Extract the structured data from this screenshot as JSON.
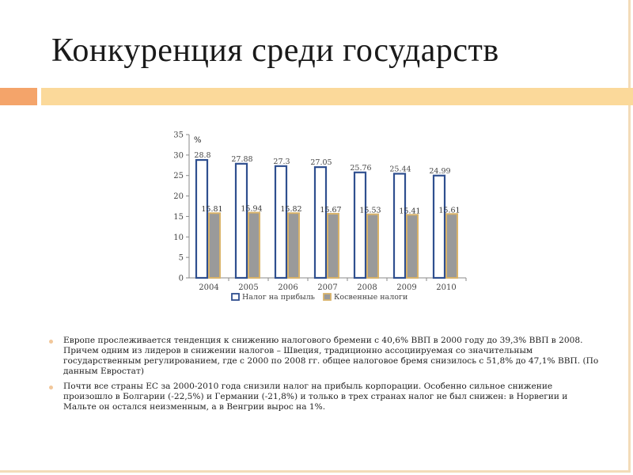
{
  "slide": {
    "title": "Конкуренция среди государств",
    "paragraphs": [
      "Европе прослеживается тенденция к снижению налогового бремени с 40,6% ВВП в 2000 году до 39,3% ВВП в 2008. Причем одним из лидеров в снижении налогов – Швеция, традиционно ассоциируемая со значительным государственным регулированием, где с 2000 по 2008 гг. общее налоговое бремя снизилось с 51,8% до 47,1% ВВП. (По данным Евростат)",
      "Почти все страны ЕС за 2000-2010 года снизили налог на прибыль корпорации. Особенно сильное снижение произошло в Болгарии (-22,5%) и Германии (-21,8%) и только в трех странах налог не был снижен: в Норвегии и Мальте он остался неизменным, а в Венгрии вырос на 1%."
    ],
    "colors": {
      "band_left": "#f4a46a",
      "band_right": "#fbd99a",
      "bullet": "#f2c79a"
    }
  },
  "chart_data": {
    "type": "bar",
    "title": "",
    "xlabel": "",
    "ylabel": "%",
    "ylim": [
      0,
      35
    ],
    "yticks": [
      0,
      5,
      10,
      15,
      20,
      25,
      30,
      35
    ],
    "categories": [
      "2004",
      "2005",
      "2006",
      "2007",
      "2008",
      "2009",
      "2010"
    ],
    "series": [
      {
        "name": "Налог на прибыль",
        "values": [
          28.8,
          27.88,
          27.3,
          27.05,
          25.76,
          25.44,
          24.99
        ],
        "labels": [
          "28.8",
          "27.88",
          "27.3",
          "27.05",
          "25.76",
          "25.44",
          "24.99"
        ],
        "fill": "#ffffff",
        "stroke": "#2f4f8f"
      },
      {
        "name": "Косвенные налоги",
        "values": [
          15.81,
          15.94,
          15.82,
          15.67,
          15.53,
          15.41,
          15.61
        ],
        "labels": [
          "15.81",
          "15.94",
          "15.82",
          "15.67",
          "15.53",
          "15.41",
          "15.61"
        ],
        "fill": "#9a9a9a",
        "stroke": "#d9b36a"
      }
    ],
    "legend_position": "bottom",
    "grid": false
  }
}
